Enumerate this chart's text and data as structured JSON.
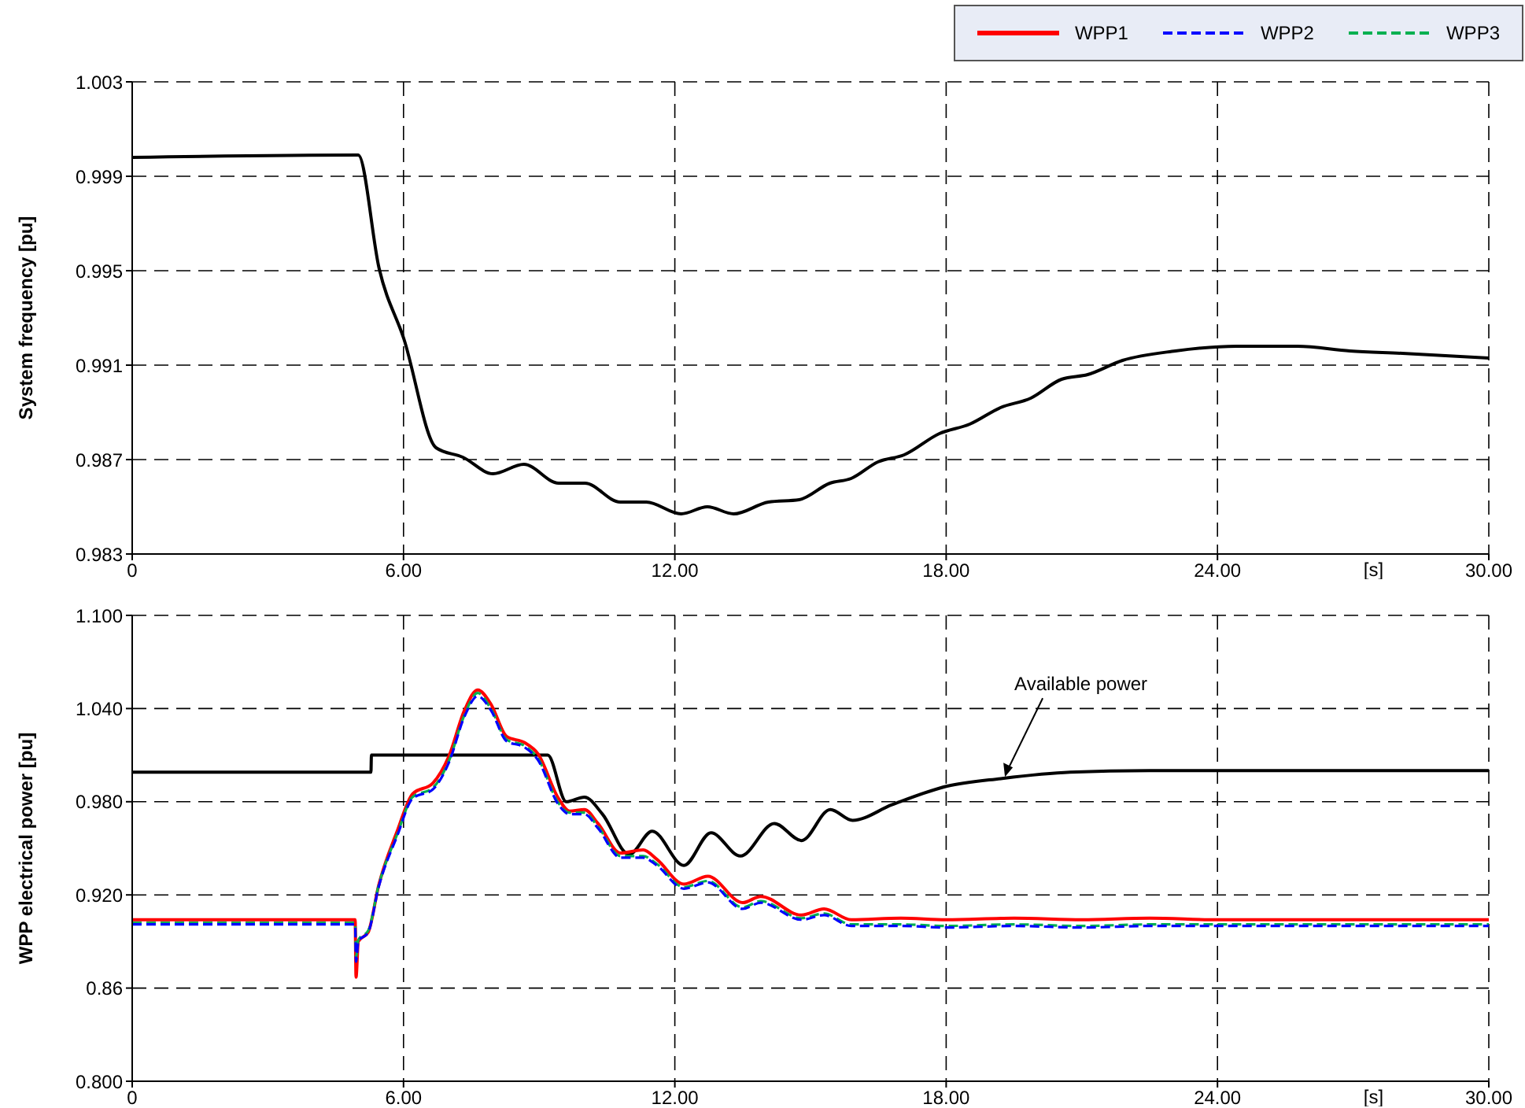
{
  "chart_data": [
    {
      "type": "line",
      "ylabel": "System frequency [pu]",
      "xlabel": "[s]",
      "grid": true,
      "xlim": [
        0,
        30
      ],
      "xticks": [
        0,
        {
          "value": 6,
          "label": "6.00"
        },
        {
          "value": 12,
          "label": "12.00"
        },
        {
          "value": 18,
          "label": "18.00"
        },
        {
          "value": 24,
          "label": "24.00"
        },
        {
          "value": 30,
          "label": "30.00"
        }
      ],
      "ylim": [
        0.983,
        1.003
      ],
      "yticks": [
        0.983,
        0.987,
        0.991,
        0.995,
        0.999,
        1.003
      ],
      "series": [
        {
          "color": "#000000",
          "x": [
            0,
            5.0,
            5.46,
            6.01,
            6.72,
            7.31,
            7.98,
            8.66,
            9.43,
            10.01,
            10.79,
            11.37,
            12.14,
            12.72,
            13.3,
            14.07,
            14.75,
            15.43,
            15.9,
            16.49,
            17.07,
            17.85,
            18.52,
            19.2,
            19.87,
            20.55,
            21.13,
            21.9,
            23.07,
            24.42,
            25.77,
            26.93,
            28.09,
            30
          ],
          "values": [
            0.9998,
            0.9999,
            0.9951,
            0.9921,
            0.9875,
            0.9871,
            0.9864,
            0.9868,
            0.986,
            0.986,
            0.9852,
            0.9852,
            0.9847,
            0.985,
            0.9847,
            0.9852,
            0.9853,
            0.986,
            0.9862,
            0.9869,
            0.9872,
            0.9881,
            0.9885,
            0.9892,
            0.9896,
            0.9904,
            0.9906,
            0.9912,
            0.9916,
            0.9918,
            0.9918,
            0.9916,
            0.9915,
            0.9913
          ]
        }
      ]
    },
    {
      "type": "line",
      "ylabel": "WPP electrical power [pu]",
      "xlabel": "[s]",
      "grid": true,
      "legend": "top right",
      "xlim": [
        0,
        30
      ],
      "xticks": [
        0,
        {
          "value": 6,
          "label": "6.00"
        },
        {
          "value": 12,
          "label": "12.00"
        },
        {
          "value": 18,
          "label": "18.00"
        },
        {
          "value": 24,
          "label": "24.00"
        },
        {
          "value": 30,
          "label": "30.00"
        }
      ],
      "ylim": [
        0.8,
        1.1
      ],
      "yticks": [
        {
          "value": 0.8,
          "label": "0.800"
        },
        0.86,
        {
          "value": 0.92,
          "label": "0.920"
        },
        {
          "value": 0.98,
          "label": "0.980"
        },
        {
          "value": 1.04,
          "label": "1.040"
        },
        {
          "value": 1.1,
          "label": "1.100"
        }
      ],
      "annotations": [
        {
          "text": "Available power",
          "x": 19.3,
          "y": 0.996
        }
      ],
      "series": [
        {
          "color": "#000000",
          "x": [
            0,
            5.28,
            5.29,
            9.19,
            9.6,
            10.0,
            10.4,
            10.99,
            11.5,
            12.2,
            12.8,
            13.45,
            14.2,
            14.8,
            15.44,
            15.93,
            16.8,
            18.02,
            19.24,
            20.74,
            22.49,
            24.23,
            30
          ],
          "values": [
            0.999,
            0.999,
            1.01,
            1.01,
            0.98,
            0.983,
            0.972,
            0.946,
            0.961,
            0.939,
            0.96,
            0.945,
            0.966,
            0.955,
            0.975,
            0.968,
            0.978,
            0.99,
            0.995,
            0.999,
            1.0,
            1.0,
            1.0
          ]
        },
        {
          "name": "WPP1",
          "color": "#ff0000",
          "line_style": "solid",
          "x": [
            0,
            4.93,
            4.95,
            5.0,
            5.22,
            5.45,
            5.86,
            6.2,
            6.65,
            7.0,
            7.35,
            7.64,
            7.93,
            8.28,
            8.68,
            8.97,
            9.43,
            9.67,
            10.0,
            10.3,
            10.8,
            11.3,
            11.6,
            12.2,
            12.73,
            13.5,
            13.9,
            14.8,
            15.3,
            15.9,
            17,
            18,
            19.5,
            21,
            22.5,
            24,
            26,
            28,
            30
          ],
          "values": [
            0.904,
            0.904,
            0.867,
            0.89,
            0.896,
            0.926,
            0.961,
            0.985,
            0.992,
            1.009,
            1.039,
            1.052,
            1.043,
            1.022,
            1.018,
            1.011,
            0.982,
            0.974,
            0.975,
            0.966,
            0.947,
            0.949,
            0.943,
            0.927,
            0.932,
            0.915,
            0.919,
            0.907,
            0.911,
            0.904,
            0.905,
            0.904,
            0.905,
            0.904,
            0.905,
            0.904,
            0.904,
            0.904,
            0.904
          ]
        },
        {
          "name": "WPP3",
          "color": "#00b050",
          "line_style": "dashed",
          "x": [
            0,
            4.93,
            4.95,
            5.0,
            5.22,
            5.45,
            5.86,
            6.2,
            6.65,
            7.0,
            7.35,
            7.64,
            7.93,
            8.28,
            8.68,
            8.97,
            9.43,
            9.67,
            10.0,
            10.3,
            10.8,
            11.3,
            11.6,
            12.2,
            12.73,
            13.5,
            13.9,
            14.8,
            15.3,
            15.9,
            17,
            18,
            19.5,
            21,
            22.5,
            24,
            26,
            28,
            30
          ],
          "values": [
            0.902,
            0.902,
            0.88,
            0.891,
            0.897,
            0.926,
            0.959,
            0.983,
            0.989,
            1.006,
            1.036,
            1.05,
            1.04,
            1.02,
            1.016,
            1.008,
            0.979,
            0.973,
            0.973,
            0.964,
            0.945,
            0.945,
            0.94,
            0.925,
            0.929,
            0.912,
            0.916,
            0.905,
            0.908,
            0.901,
            0.901,
            0.9,
            0.901,
            0.9,
            0.901,
            0.901,
            0.901,
            0.901,
            0.901
          ]
        },
        {
          "name": "WPP2",
          "color": "#0000ff",
          "line_style": "dashed",
          "x": [
            0,
            4.93,
            4.95,
            5.0,
            5.22,
            5.45,
            5.86,
            6.2,
            6.65,
            7.0,
            7.35,
            7.64,
            7.93,
            8.28,
            8.68,
            8.97,
            9.43,
            9.67,
            10.0,
            10.3,
            10.8,
            11.3,
            11.6,
            12.2,
            12.73,
            13.5,
            13.9,
            14.8,
            15.3,
            15.9,
            17,
            18,
            19.5,
            21,
            22.5,
            24,
            26,
            28,
            30
          ],
          "values": [
            0.901,
            0.901,
            0.877,
            0.89,
            0.896,
            0.925,
            0.958,
            0.982,
            0.988,
            1.005,
            1.035,
            1.048,
            1.039,
            1.019,
            1.015,
            1.007,
            0.978,
            0.972,
            0.972,
            0.963,
            0.944,
            0.944,
            0.939,
            0.924,
            0.928,
            0.911,
            0.915,
            0.904,
            0.907,
            0.9,
            0.9,
            0.899,
            0.9,
            0.899,
            0.9,
            0.9,
            0.9,
            0.9,
            0.9
          ]
        }
      ]
    }
  ]
}
